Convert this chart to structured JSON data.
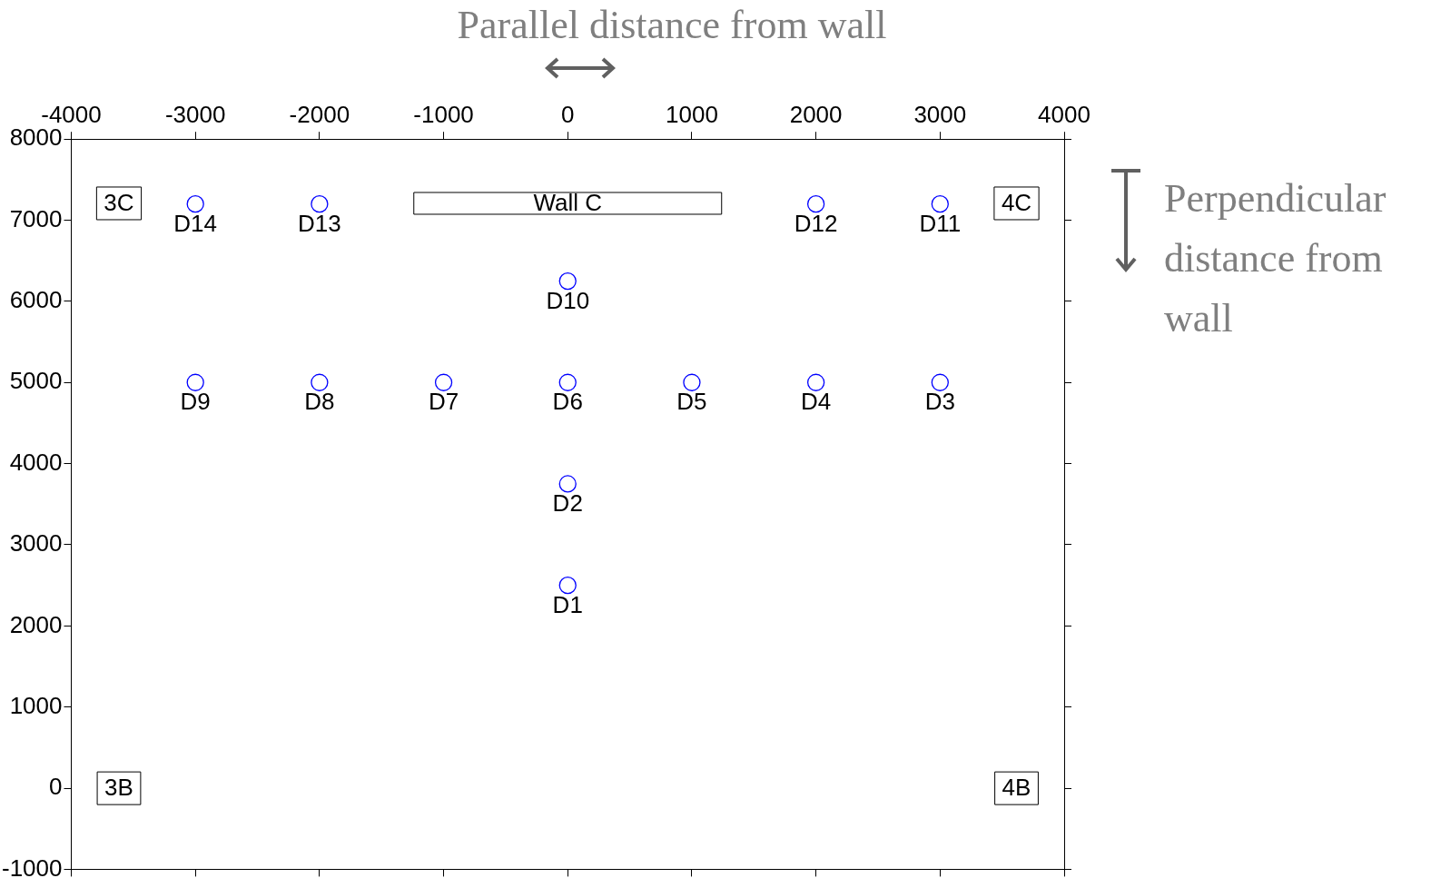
{
  "chart_data": {
    "type": "scatter",
    "xlabel": "Parallel distance from wall",
    "ylabel": "Perpendicular distance from wall",
    "x": [
      0,
      0,
      3000,
      2000,
      1000,
      0,
      -1000,
      -2000,
      -3000,
      0,
      3000,
      2000,
      -2000,
      -3000
    ],
    "values": [
      2500,
      3750,
      5000,
      5000,
      5000,
      5000,
      5000,
      5000,
      5000,
      6250,
      7200,
      7200,
      7200,
      7200
    ],
    "value_labels": [
      "D1",
      "D2",
      "D3",
      "D4",
      "D5",
      "D6",
      "D7",
      "D8",
      "D9",
      "D10",
      "D11",
      "D12",
      "D13",
      "D14"
    ],
    "color": "#0000ff",
    "marker": "circle",
    "grid": false,
    "legend": false,
    "xlim": [
      -4000,
      4000
    ],
    "xticks": [
      -4000,
      -3000,
      -2000,
      -1000,
      0,
      1000,
      2000,
      3000,
      4000
    ],
    "ylim": [
      -1000,
      8000
    ],
    "yticks": [
      -1000,
      0,
      1000,
      2000,
      3000,
      4000,
      5000,
      6000,
      7000,
      8000
    ],
    "annotations": [
      "Wall C",
      "3C",
      "4C",
      "3B",
      "4B"
    ]
  }
}
